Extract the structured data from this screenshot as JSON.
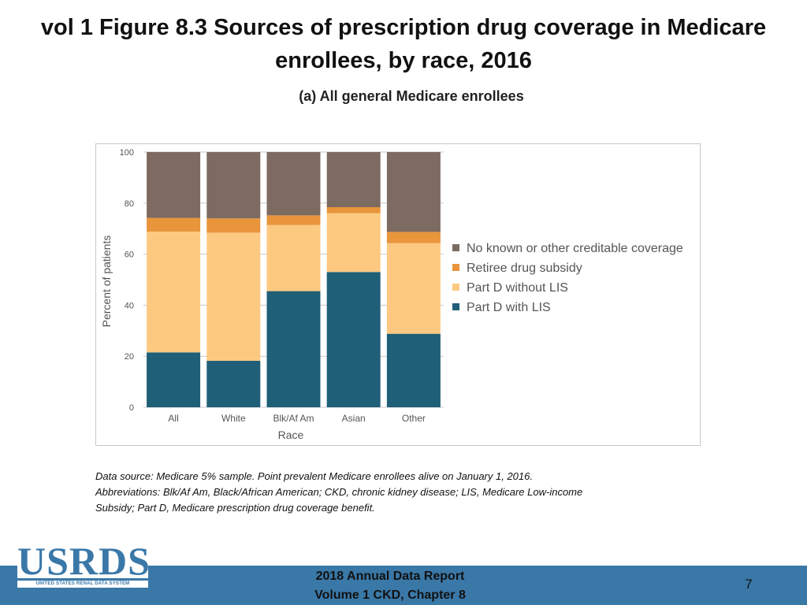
{
  "slide": {
    "title": "vol 1 Figure 8.3 Sources of prescription drug coverage in Medicare enrollees, by race, 2016",
    "footnote": "Data source: Medicare 5% sample. Point prevalent Medicare enrollees alive on January 1, 2016. Abbreviations: Blk/Af Am, Black/African American; CKD, chronic kidney disease; LIS, Medicare Low-income Subsidy; Part D, Medicare prescription drug coverage benefit.",
    "footer_line1": "2018 Annual Data Report",
    "footer_line2": "Volume 1 CKD, Chapter 8",
    "page_number": "7",
    "logo_text": "USRDS",
    "logo_subtext": "UNITED STATES RENAL DATA SYSTEM"
  },
  "colors": {
    "footer_bar": "#3a78a8"
  },
  "chart_data": {
    "type": "bar",
    "stacked": true,
    "title": "(a) All general Medicare enrollees",
    "xlabel": "Race",
    "ylabel": "Percent of patients",
    "ylim": [
      0,
      100
    ],
    "yticks": [
      0,
      20,
      40,
      60,
      80,
      100
    ],
    "grid": true,
    "legend_position": "right",
    "categories": [
      "All",
      "White",
      "Blk/Af Am",
      "Asian",
      "Other"
    ],
    "series": [
      {
        "name": "Part D with LIS",
        "color": "#1f5f77",
        "values": [
          21.5,
          18.2,
          45.5,
          53.0,
          28.8
        ]
      },
      {
        "name": "Part D without LIS",
        "color": "#fdc981",
        "values": [
          47.3,
          50.2,
          25.9,
          23.0,
          35.5
        ]
      },
      {
        "name": "Retiree drug subsidy",
        "color": "#e8953b",
        "values": [
          5.4,
          5.6,
          3.8,
          2.4,
          4.4
        ]
      },
      {
        "name": "No known or other creditable coverage",
        "color": "#7d6a61",
        "values": [
          25.8,
          26.0,
          24.8,
          21.6,
          31.3
        ]
      }
    ],
    "legend_order": [
      "No known or other creditable coverage",
      "Retiree drug subsidy",
      "Part D without LIS",
      "Part D with LIS"
    ]
  }
}
